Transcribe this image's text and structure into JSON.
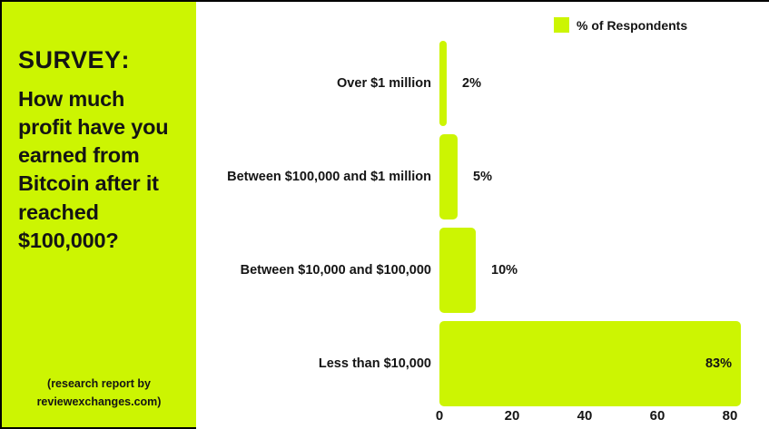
{
  "page": {
    "bg_color": "#ffffff",
    "edge_border_color": "#000000"
  },
  "panel": {
    "bg_color": "#ccf502",
    "text_color": "#141414",
    "title": "SURVEY",
    "title_suffix": ":",
    "question": "How much profit have you earned from Bitcoin after it reached $100,000?",
    "footer_line1": "(research report by",
    "footer_line2": "reviewexchanges.com)"
  },
  "legend": {
    "label": "% of Respondents",
    "swatch_color": "#ccf502"
  },
  "chart_data": {
    "type": "bar",
    "orientation": "horizontal",
    "title": "",
    "series_name": "% of Respondents",
    "categories": [
      "Over $1 million",
      "Between $100,000 and $1 million",
      "Between $10,000 and $100,000",
      "Less than $10,000"
    ],
    "values": [
      2,
      5,
      10,
      83
    ],
    "value_labels": [
      "2%",
      "5%",
      "10%",
      "83%"
    ],
    "x_ticks": [
      0,
      20,
      40,
      60,
      80
    ],
    "xlim": [
      0,
      85
    ],
    "bar_color": "#ccf502",
    "grid": false,
    "legend_position": "top-right",
    "value_labels_inside_above": 50
  }
}
